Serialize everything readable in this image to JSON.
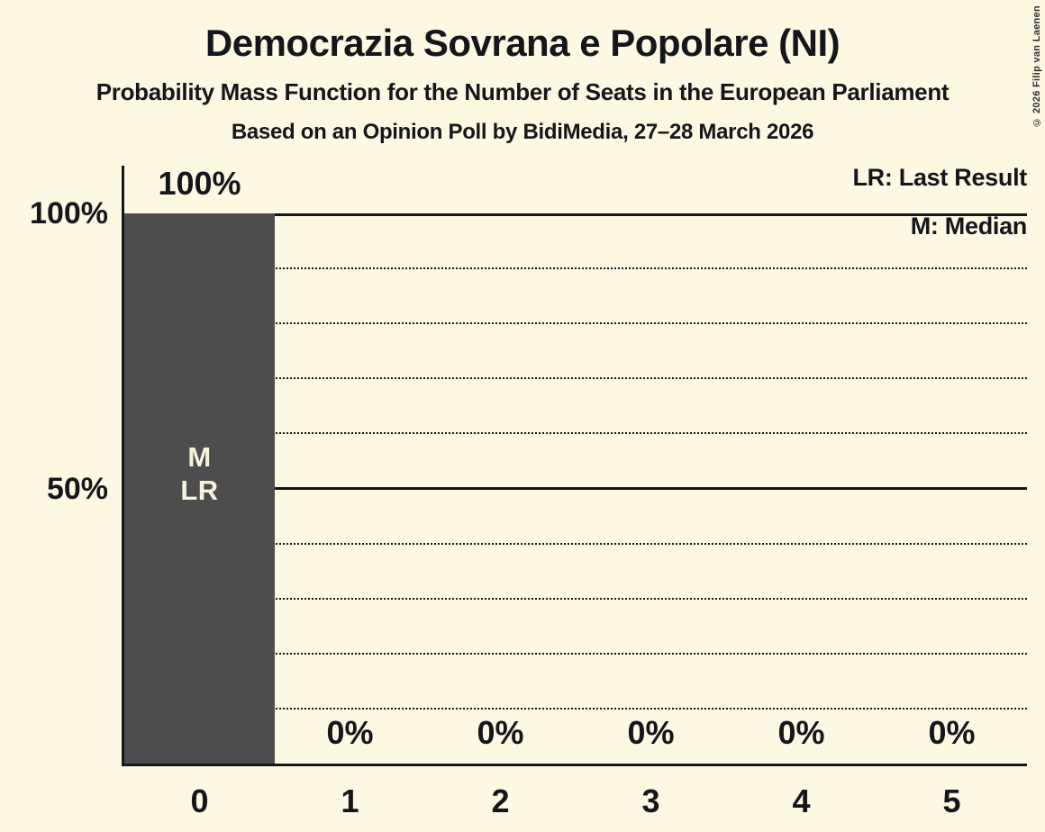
{
  "header": {
    "title": "Democrazia Sovrana e Popolare (NI)",
    "subtitle": "Probability Mass Function for the Number of Seats in the European Parliament",
    "poll_info": "Based on an Opinion Poll by BidiMedia, 27–28 March 2026"
  },
  "copyright": "© 2026 Filip van Laenen",
  "colors": {
    "background": "#FDF8E2",
    "bar": "#4D4D4D",
    "text": "#15161A",
    "gridline": "#15161A",
    "bar_label_text": "#F7F2DC",
    "copyright_text": "#2E2E2E"
  },
  "chart_data": {
    "type": "bar",
    "title": "Democrazia Sovrana e Popolare (NI)",
    "categories": [
      "0",
      "1",
      "2",
      "3",
      "4",
      "5"
    ],
    "values": [
      100,
      0,
      0,
      0,
      0,
      0
    ],
    "value_labels": [
      "100%",
      "0%",
      "0%",
      "0%",
      "0%",
      "0%"
    ],
    "ylim": [
      0,
      100
    ],
    "y_ticks": [
      {
        "value": 100,
        "label": "100%"
      },
      {
        "value": 50,
        "label": "50%"
      }
    ],
    "solid_gridlines": [
      100,
      50
    ],
    "dotted_gridlines": [
      90,
      80,
      70,
      60,
      40,
      30,
      20,
      10
    ],
    "grid": "horizontal dotted, solid at 50% and 100%",
    "legend_position": "top-right",
    "legend": [
      "LR: Last Result",
      "M: Median"
    ],
    "bar_markers": {
      "category": "0",
      "lines": [
        "M",
        "LR"
      ]
    }
  }
}
